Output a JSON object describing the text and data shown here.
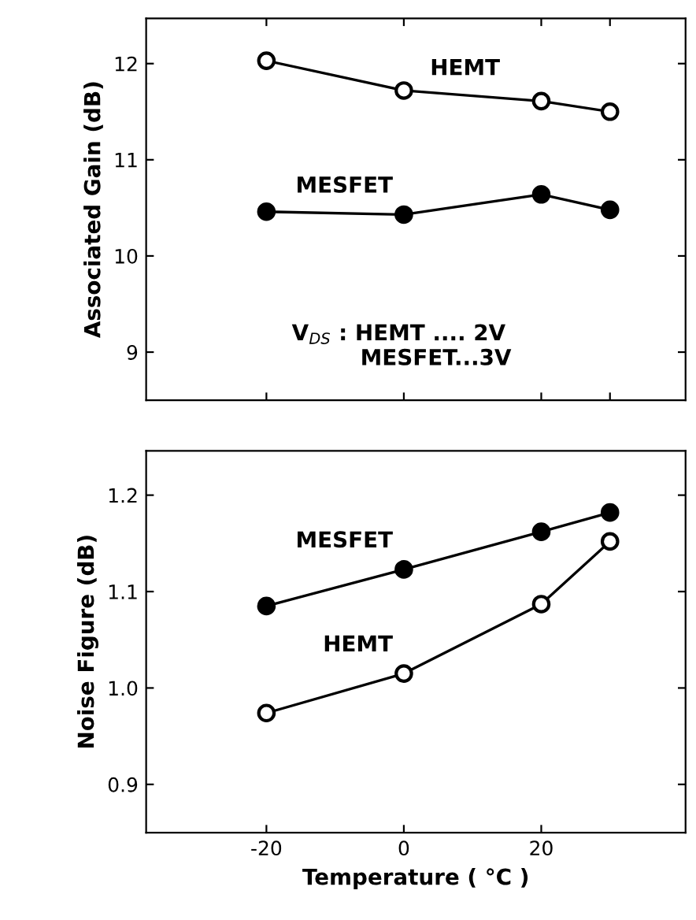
{
  "chart_data": [
    {
      "type": "line",
      "ylabel": "Associated Gain (dB)",
      "x": [
        -20,
        0,
        20,
        30
      ],
      "xlim": [
        -37.5,
        41
      ],
      "xticks": [
        {
          "value": -20,
          "label": null
        },
        {
          "value": 0,
          "label": null
        },
        {
          "value": 20,
          "label": null
        },
        {
          "value": 30,
          "label": null
        }
      ],
      "ylim": [
        8.5,
        12.47
      ],
      "yticks": [
        9,
        10,
        11,
        12
      ],
      "tick_labels": "y",
      "grid": false,
      "legend": false,
      "marker": "circle",
      "line_style": "solid",
      "series": [
        {
          "name": "HEMT",
          "color": "#000000",
          "values": [
            12.03,
            11.72,
            11.61,
            11.5
          ]
        },
        {
          "name": "MESFET",
          "color": "#000000",
          "values": [
            10.46,
            10.43,
            10.64,
            10.48
          ]
        }
      ],
      "annotations": [
        "V$_{DS}$ : HEMT .... 2V\n         MESFET...3V"
      ]
    },
    {
      "type": "line",
      "xlabel": "Temperature ( °C )",
      "ylabel": "Noise Figure (dB)",
      "x": [
        -20,
        0,
        20,
        30
      ],
      "xlim": [
        -37.5,
        41
      ],
      "xticks": [
        -20,
        0,
        20
      ],
      "ylim": [
        0.85,
        1.246
      ],
      "yticks": [
        {
          "value": 0.9,
          "label": "0.9"
        },
        {
          "value": 1.0,
          "label": "1.0"
        },
        {
          "value": 1.1,
          "label": "1.1"
        },
        {
          "value": 1.2,
          "label": "1.2"
        }
      ],
      "grid": false,
      "legend": false,
      "marker": "circle",
      "line_style": "solid",
      "series": [
        {
          "name": "MESFET",
          "color": "#000000",
          "values": [
            1.085,
            1.123,
            1.162,
            1.182
          ]
        },
        {
          "name": "HEMT",
          "color": "#000000",
          "values": [
            0.974,
            1.015,
            1.087,
            1.152
          ]
        }
      ]
    }
  ]
}
